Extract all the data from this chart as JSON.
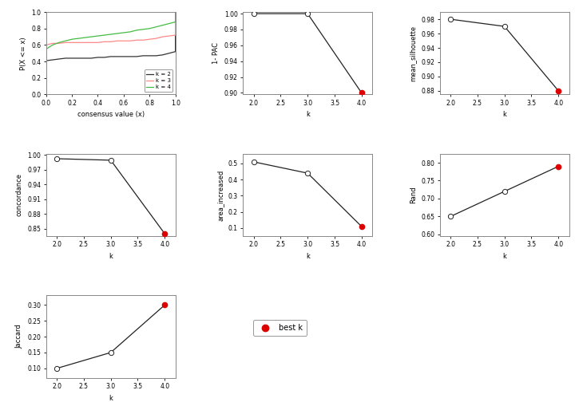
{
  "ecdf": {
    "k2": {
      "x": [
        0.0,
        0.001,
        0.001,
        0.05,
        0.1,
        0.15,
        0.2,
        0.25,
        0.3,
        0.35,
        0.4,
        0.45,
        0.5,
        0.55,
        0.6,
        0.65,
        0.7,
        0.75,
        0.8,
        0.85,
        0.9,
        0.95,
        0.999,
        0.999,
        1.0
      ],
      "y": [
        0.0,
        0.0,
        0.41,
        0.42,
        0.43,
        0.44,
        0.44,
        0.44,
        0.44,
        0.44,
        0.45,
        0.45,
        0.46,
        0.46,
        0.46,
        0.46,
        0.46,
        0.47,
        0.47,
        0.47,
        0.48,
        0.5,
        0.52,
        1.0,
        1.0
      ],
      "color": "#333333"
    },
    "k3": {
      "x": [
        0.0,
        0.001,
        0.001,
        0.05,
        0.1,
        0.15,
        0.2,
        0.25,
        0.3,
        0.35,
        0.4,
        0.45,
        0.5,
        0.55,
        0.6,
        0.65,
        0.7,
        0.75,
        0.8,
        0.85,
        0.9,
        0.95,
        0.999,
        0.999,
        1.0
      ],
      "y": [
        0.0,
        0.0,
        0.6,
        0.62,
        0.62,
        0.63,
        0.63,
        0.63,
        0.63,
        0.63,
        0.63,
        0.64,
        0.64,
        0.65,
        0.65,
        0.65,
        0.66,
        0.66,
        0.67,
        0.68,
        0.7,
        0.71,
        0.72,
        1.0,
        1.0
      ],
      "color": "#ff8888"
    },
    "k4": {
      "x": [
        0.0,
        0.001,
        0.001,
        0.05,
        0.1,
        0.15,
        0.2,
        0.25,
        0.3,
        0.35,
        0.4,
        0.45,
        0.5,
        0.55,
        0.6,
        0.65,
        0.7,
        0.75,
        0.8,
        0.85,
        0.9,
        0.95,
        0.999,
        0.999,
        1.0
      ],
      "y": [
        0.0,
        0.0,
        0.55,
        0.6,
        0.63,
        0.65,
        0.67,
        0.68,
        0.69,
        0.7,
        0.71,
        0.72,
        0.73,
        0.74,
        0.75,
        0.76,
        0.78,
        0.79,
        0.8,
        0.82,
        0.84,
        0.86,
        0.88,
        1.0,
        1.0
      ],
      "color": "#44bb44"
    }
  },
  "k_values": [
    2,
    3,
    4
  ],
  "pac": {
    "values": [
      1.0,
      1.0,
      0.9
    ],
    "best_k_idx": 2,
    "ylim": [
      0.898,
      1.002
    ],
    "yticks": [
      0.9,
      0.92,
      0.94,
      0.96,
      0.98,
      1.0
    ],
    "ylabel": "1- PAC"
  },
  "silhouette": {
    "values": [
      0.98,
      0.97,
      0.88
    ],
    "best_k_idx": 2,
    "ylim": [
      0.875,
      0.99
    ],
    "yticks": [
      0.88,
      0.9,
      0.92,
      0.94,
      0.96,
      0.98
    ],
    "ylabel": "mean_silhouette"
  },
  "concordance": {
    "values": [
      0.992,
      0.989,
      0.84
    ],
    "best_k_idx": 2,
    "ylim": [
      0.835,
      1.002
    ],
    "yticks": [
      0.85,
      0.88,
      0.91,
      0.94,
      0.97,
      1.0
    ],
    "ylabel": "concordance"
  },
  "area_increased": {
    "values": [
      0.51,
      0.44,
      0.11
    ],
    "best_k_idx": 2,
    "ylim": [
      0.05,
      0.56
    ],
    "yticks": [
      0.1,
      0.2,
      0.3,
      0.4,
      0.5
    ],
    "ylabel": "area_increased"
  },
  "rand": {
    "values": [
      0.65,
      0.72,
      0.79
    ],
    "best_k_idx": 2,
    "ylim": [
      0.595,
      0.825
    ],
    "yticks": [
      0.6,
      0.65,
      0.7,
      0.75,
      0.8
    ],
    "ylabel": "Rand"
  },
  "jaccard": {
    "values": [
      0.1,
      0.15,
      0.3
    ],
    "best_k_idx": 2,
    "ylim": [
      0.07,
      0.33
    ],
    "yticks": [
      0.1,
      0.15,
      0.2,
      0.25,
      0.3
    ],
    "ylabel": "Jaccard"
  },
  "best_k_color": "#dd0000",
  "open_circle_facecolor": "white",
  "line_color": "#222222",
  "bg_color": "white",
  "plot_bg": "white"
}
